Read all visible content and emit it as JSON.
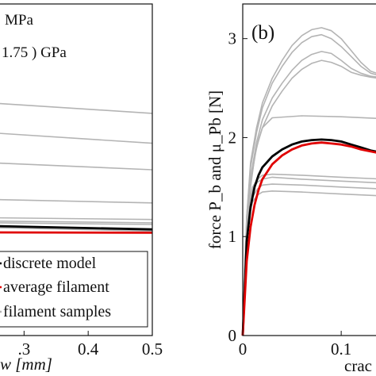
{
  "chart_data": [
    {
      "type": "line",
      "panel": "a",
      "annotations": [
        "MPa",
        "1.75 ) GPa"
      ],
      "xlabel": "w [mm]",
      "xlim": [
        0.26,
        0.5
      ],
      "ylim": [
        0,
        1
      ],
      "x_ticks": [
        0.3,
        0.4,
        0.5
      ],
      "x_tick_labels": [
        ".3",
        "0.4",
        "0.5"
      ],
      "legend": {
        "placement": "bottom-right",
        "entries": [
          {
            "label": "discrete model",
            "color": "#000000"
          },
          {
            "label": "average filament",
            "color": "#e00000"
          },
          {
            "label": "filament samples",
            "color": "#b4b4b4"
          }
        ]
      },
      "series": [
        {
          "color": "#b4b4b4",
          "x": [
            0.26,
            0.5
          ],
          "y": [
            0.7,
            0.67
          ]
        },
        {
          "color": "#b4b4b4",
          "x": [
            0.26,
            0.5
          ],
          "y": [
            0.61,
            0.58
          ]
        },
        {
          "color": "#b4b4b4",
          "x": [
            0.26,
            0.5
          ],
          "y": [
            0.52,
            0.5
          ]
        },
        {
          "color": "#b4b4b4",
          "x": [
            0.26,
            0.5
          ],
          "y": [
            0.41,
            0.4
          ]
        },
        {
          "color": "#b4b4b4",
          "x": [
            0.26,
            0.5
          ],
          "y": [
            0.355,
            0.35
          ]
        },
        {
          "color": "#b4b4b4",
          "x": [
            0.26,
            0.5
          ],
          "y": [
            0.345,
            0.34
          ]
        },
        {
          "color": "#b4b4b4",
          "x": [
            0.26,
            0.5
          ],
          "y": [
            0.34,
            0.335
          ]
        },
        {
          "color": "#b4b4b4",
          "x": [
            0.26,
            0.5
          ],
          "y": [
            0.325,
            0.315
          ]
        },
        {
          "color": "#000000",
          "x": [
            0.26,
            0.5
          ],
          "y": [
            0.33,
            0.32
          ]
        },
        {
          "color": "#e00000",
          "x": [
            0.26,
            0.5
          ],
          "y": [
            0.311,
            0.31
          ]
        }
      ]
    },
    {
      "type": "line",
      "panel": "b",
      "panel_label": "(b)",
      "xlabel": "crac",
      "ylabel": "force P_b and μ_Pb [N]",
      "xlim": [
        0,
        0.145
      ],
      "ylim": [
        0,
        3.35
      ],
      "x_ticks": [
        0,
        0.1
      ],
      "x_tick_labels": [
        "0",
        "0.1"
      ],
      "y_ticks": [
        0,
        1,
        2,
        3
      ],
      "y_tick_labels": [
        "0",
        "1",
        "2",
        "3"
      ],
      "series": [
        {
          "color": "#b4b4b4",
          "x": [
            0,
            0.004,
            0.008,
            0.014,
            0.02,
            0.03,
            0.04,
            0.05,
            0.06,
            0.07,
            0.08,
            0.09,
            0.1,
            0.11,
            0.12,
            0.13,
            0.145
          ],
          "y": [
            0,
            1.2,
            1.75,
            2.1,
            2.35,
            2.6,
            2.78,
            2.93,
            3.03,
            3.09,
            3.11,
            3.08,
            3.0,
            2.88,
            2.76,
            2.67,
            2.62
          ]
        },
        {
          "color": "#b4b4b4",
          "x": [
            0,
            0.004,
            0.008,
            0.014,
            0.02,
            0.03,
            0.04,
            0.05,
            0.06,
            0.07,
            0.08,
            0.09,
            0.1,
            0.11,
            0.12,
            0.13,
            0.145
          ],
          "y": [
            0,
            1.2,
            1.7,
            2.05,
            2.3,
            2.55,
            2.72,
            2.86,
            2.96,
            3.02,
            3.04,
            3.0,
            2.92,
            2.82,
            2.72,
            2.65,
            2.61
          ]
        },
        {
          "color": "#b4b4b4",
          "x": [
            0,
            0.004,
            0.008,
            0.014,
            0.02,
            0.03,
            0.04,
            0.05,
            0.06,
            0.07,
            0.08,
            0.09,
            0.1,
            0.11,
            0.12,
            0.13,
            0.145
          ],
          "y": [
            0,
            1.15,
            1.6,
            1.95,
            2.18,
            2.4,
            2.55,
            2.68,
            2.78,
            2.84,
            2.87,
            2.85,
            2.78,
            2.7,
            2.65,
            2.62,
            2.6
          ]
        },
        {
          "color": "#b4b4b4",
          "x": [
            0,
            0.004,
            0.008,
            0.014,
            0.02,
            0.03,
            0.04,
            0.05,
            0.06,
            0.07,
            0.08,
            0.09,
            0.1,
            0.11,
            0.12,
            0.13,
            0.145
          ],
          "y": [
            0,
            1.1,
            1.55,
            1.9,
            2.1,
            2.32,
            2.47,
            2.6,
            2.69,
            2.75,
            2.78,
            2.76,
            2.72,
            2.66,
            2.63,
            2.61,
            2.59
          ]
        },
        {
          "color": "#b4b4b4",
          "x": [
            0,
            0.004,
            0.008,
            0.012,
            0.016,
            0.02,
            0.03,
            0.06,
            0.1,
            0.145
          ],
          "y": [
            0,
            1.05,
            1.5,
            1.8,
            1.98,
            2.1,
            2.2,
            2.22,
            2.21,
            2.19
          ]
        },
        {
          "color": "#b4b4b4",
          "x": [
            0,
            0.003,
            0.006,
            0.01,
            0.015,
            0.02,
            0.03,
            0.06,
            0.1,
            0.145
          ],
          "y": [
            0,
            0.95,
            1.3,
            1.5,
            1.58,
            1.62,
            1.63,
            1.62,
            1.6,
            1.58
          ]
        },
        {
          "color": "#b4b4b4",
          "x": [
            0,
            0.003,
            0.006,
            0.01,
            0.015,
            0.02,
            0.03,
            0.06,
            0.1,
            0.145
          ],
          "y": [
            0,
            0.95,
            1.3,
            1.48,
            1.55,
            1.58,
            1.6,
            1.58,
            1.56,
            1.54
          ]
        },
        {
          "color": "#b4b4b4",
          "x": [
            0,
            0.003,
            0.006,
            0.01,
            0.015,
            0.02,
            0.03,
            0.06,
            0.1,
            0.145
          ],
          "y": [
            0,
            0.9,
            1.25,
            1.4,
            1.48,
            1.52,
            1.53,
            1.52,
            1.5,
            1.48
          ]
        },
        {
          "color": "#b4b4b4",
          "x": [
            0,
            0.003,
            0.006,
            0.01,
            0.015,
            0.02,
            0.03,
            0.06,
            0.1,
            0.145
          ],
          "y": [
            0,
            0.9,
            1.2,
            1.35,
            1.42,
            1.45,
            1.46,
            1.45,
            1.43,
            1.41
          ]
        },
        {
          "color": "#000000",
          "x": [
            0,
            0.004,
            0.008,
            0.012,
            0.016,
            0.02,
            0.03,
            0.04,
            0.05,
            0.06,
            0.07,
            0.08,
            0.09,
            0.1,
            0.11,
            0.12,
            0.13,
            0.145
          ],
          "y": [
            0,
            0.95,
            1.3,
            1.5,
            1.62,
            1.7,
            1.81,
            1.88,
            1.93,
            1.96,
            1.975,
            1.98,
            1.975,
            1.96,
            1.93,
            1.9,
            1.87,
            1.84
          ]
        },
        {
          "color": "#e00000",
          "x": [
            0,
            0.004,
            0.008,
            0.012,
            0.016,
            0.02,
            0.03,
            0.04,
            0.05,
            0.06,
            0.07,
            0.08,
            0.09,
            0.1,
            0.11,
            0.12,
            0.13,
            0.145
          ],
          "y": [
            0,
            0.75,
            1.1,
            1.32,
            1.47,
            1.58,
            1.73,
            1.82,
            1.88,
            1.92,
            1.94,
            1.95,
            1.94,
            1.93,
            1.91,
            1.88,
            1.86,
            1.83
          ]
        }
      ]
    }
  ]
}
